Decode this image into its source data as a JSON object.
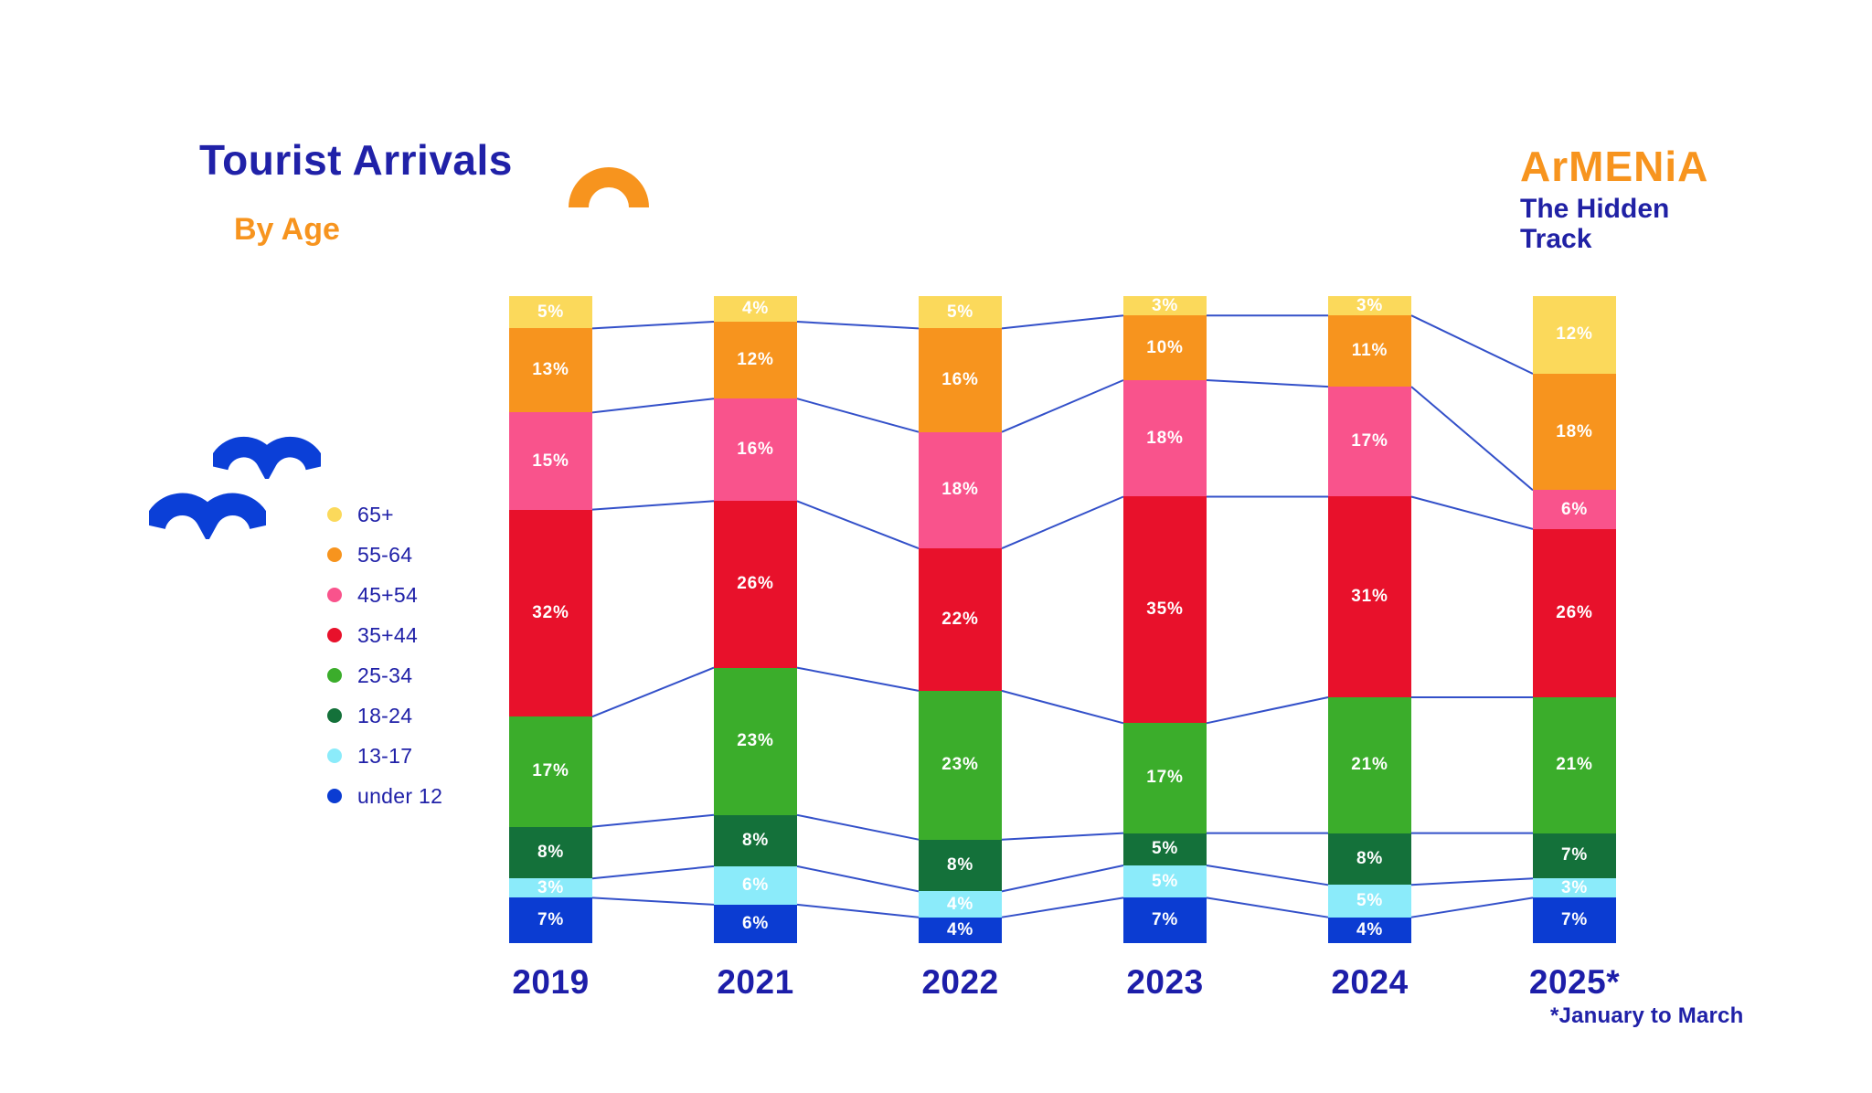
{
  "header": {
    "title": "Tourist Arrivals",
    "subtitle": "By Age"
  },
  "logo": {
    "brand": "ArMENiA",
    "tagline_line1": "The Hidden",
    "tagline_line2": "Track"
  },
  "footnote": "*January to March",
  "colors": {
    "accent_blue": "#2021A8",
    "accent_orange": "#F7941E",
    "connector_line": "#3350C9",
    "bird_blue": "#0B3FD7",
    "background": "#FFFFFF"
  },
  "chart_data": {
    "type": "bar",
    "variant": "stacked-percent-column",
    "title": "Tourist Arrivals By Age",
    "categories": [
      "2019",
      "2021",
      "2022",
      "2023",
      "2024",
      "2025*"
    ],
    "series": [
      {
        "name": "65+",
        "color": "#FBD95B",
        "values": [
          5,
          4,
          5,
          3,
          3,
          12
        ]
      },
      {
        "name": "55-64",
        "color": "#F7941E",
        "values": [
          13,
          12,
          16,
          10,
          11,
          18
        ]
      },
      {
        "name": "45+54",
        "color": "#F9538C",
        "values": [
          15,
          16,
          18,
          18,
          17,
          6
        ]
      },
      {
        "name": "35+44",
        "color": "#E8112B",
        "values": [
          32,
          26,
          22,
          35,
          31,
          26
        ]
      },
      {
        "name": "25-34",
        "color": "#3BAD2B",
        "values": [
          17,
          23,
          23,
          17,
          21,
          21
        ]
      },
      {
        "name": "18-24",
        "color": "#14713A",
        "values": [
          8,
          8,
          8,
          5,
          8,
          7
        ]
      },
      {
        "name": "13-17",
        "color": "#8BEBFA",
        "values": [
          3,
          6,
          4,
          5,
          5,
          3
        ]
      },
      {
        "name": "under 12",
        "color": "#0B3CD2",
        "values": [
          7,
          6,
          4,
          7,
          4,
          7
        ]
      }
    ],
    "value_suffix": "%",
    "ylim": [
      0,
      100
    ],
    "grid": false,
    "legend_position": "left",
    "connector_lines_between_segments": true,
    "xlabel": "",
    "ylabel": ""
  }
}
